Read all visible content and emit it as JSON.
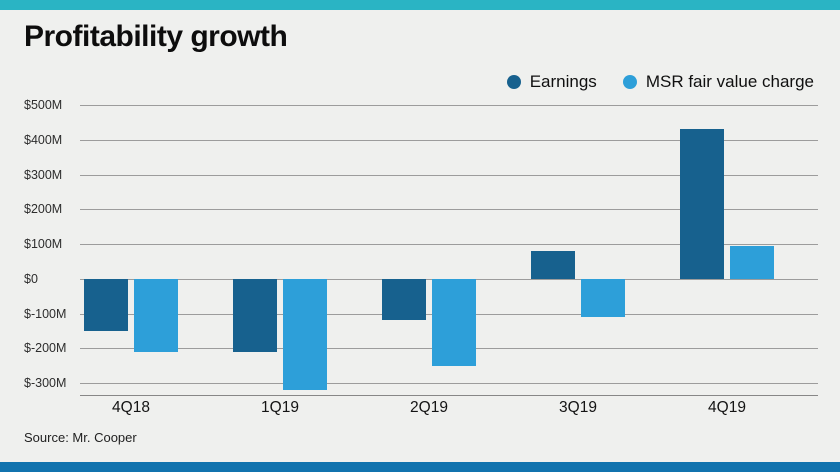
{
  "accent_colors": {
    "top_bar": "#2ab4c4",
    "bottom_bar": "#1173ae"
  },
  "chart_data": {
    "type": "bar",
    "title": "Profitability growth",
    "unit": "$ millions",
    "categories": [
      "4Q18",
      "1Q19",
      "2Q19",
      "3Q19",
      "4Q19"
    ],
    "series": [
      {
        "name": "Earnings",
        "color": "#17618e",
        "values": [
          -150,
          -210,
          -120,
          80,
          430
        ]
      },
      {
        "name": "MSR fair value charge",
        "color": "#2d9fd9",
        "values": [
          -210,
          -320,
          -250,
          -110,
          95
        ]
      }
    ],
    "yticks": [
      {
        "label": "$500M",
        "value": 500
      },
      {
        "label": "$400M",
        "value": 400
      },
      {
        "label": "$300M",
        "value": 300
      },
      {
        "label": "$200M",
        "value": 200
      },
      {
        "label": "$100M",
        "value": 100
      },
      {
        "label": "$0",
        "value": 0
      },
      {
        "label": "$-100M",
        "value": -100
      },
      {
        "label": "$-200M",
        "value": -200
      },
      {
        "label": "$-300M",
        "value": -300
      }
    ],
    "ylim": [
      -340,
      500
    ],
    "grid": true,
    "legend_position": "top-right",
    "source": "Source: Mr. Cooper"
  }
}
